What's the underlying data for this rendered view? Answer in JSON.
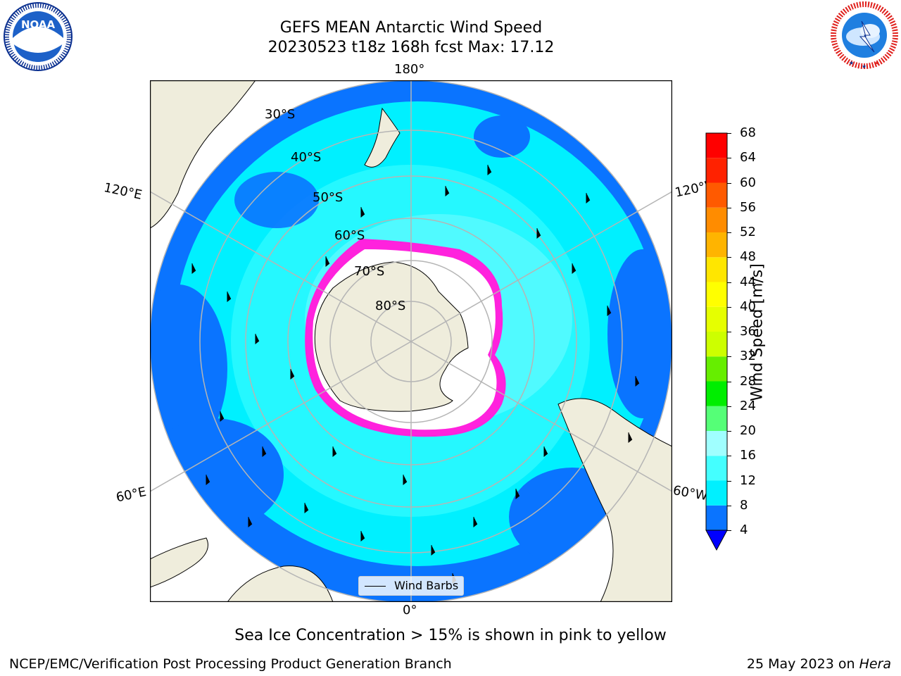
{
  "header": {
    "title_line1": "GEFS MEAN Antarctic Wind Speed",
    "title_line2": "20230523 t18z 168h fcst   Max: 17.12"
  },
  "logos": {
    "noaa": {
      "text": "NOAA",
      "ring_text": "NATIONAL OCEANIC AND ATMOSPHERIC ADMINISTRATION · U.S. DEPARTMENT OF COMMERCE",
      "color": "#0a2f8f"
    },
    "nws": {
      "ring_text": "NATIONAL WEATHER SERVICE",
      "color": "#e0211d"
    }
  },
  "map": {
    "projection": "south-polar-stereographic",
    "longitude_labels": {
      "top": "180°",
      "bottom": "0°",
      "left_upper": "120°E",
      "left_lower": "60°E",
      "right_upper": "120°W",
      "right_lower": "60°W"
    },
    "latitude_labels": [
      "30°S",
      "40°S",
      "50°S",
      "60°S",
      "70°S",
      "80°S"
    ],
    "legend": {
      "label": "Wind Barbs"
    },
    "colors": {
      "land": "#efeddc",
      "ice_shelf": "#ffffff",
      "ice_edge": "#ff22dd",
      "grid": "#b5b5b5"
    }
  },
  "colorbar": {
    "label": "Wind Speed [m/s]",
    "ticks": [
      "4",
      "8",
      "12",
      "16",
      "20",
      "24",
      "28",
      "32",
      "36",
      "40",
      "44",
      "48",
      "52",
      "56",
      "60",
      "64",
      "68"
    ],
    "colors": [
      "#0a74ff",
      "#00f0ff",
      "#44ffff",
      "#a0ffff",
      "#55ff77",
      "#00ee00",
      "#66ee00",
      "#cdff00",
      "#e6ff00",
      "#ffff00",
      "#ffe600",
      "#ffb400",
      "#ff8c00",
      "#ff5a00",
      "#ff2200",
      "#ff0000"
    ],
    "under_color": "#0000ff"
  },
  "note": "Sea Ice Concentration > 15% is shown in pink to yellow",
  "footer": {
    "left": "NCEP/EMC/Verification Post Processing Product Generation Branch",
    "right_prefix": "25 May 2023 on ",
    "right_machine": "Hera"
  }
}
